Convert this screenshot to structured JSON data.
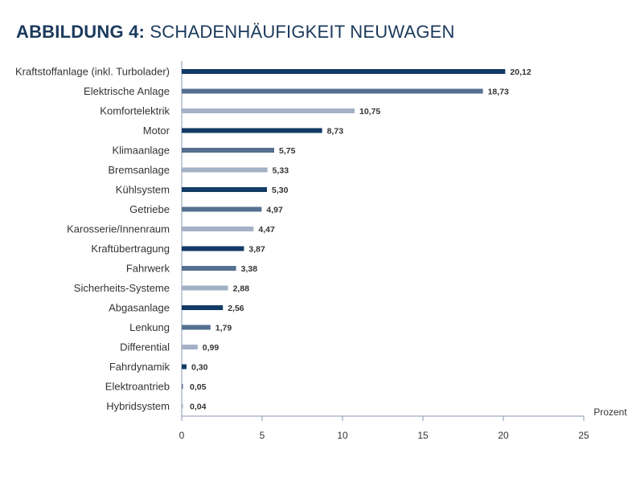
{
  "header": {
    "title_bold": "ABBILDUNG 4:",
    "title_rest": "SCHADENHÄUFIGKEIT NEUWAGEN"
  },
  "colors": {
    "dark": "#123a64",
    "medium": "#55708f",
    "light": "#a3b1c6",
    "axis": "#8a9ab0",
    "title": "#1b3a5c"
  },
  "chart_data": {
    "type": "bar",
    "orientation": "horizontal",
    "categories": [
      "Kraftstoffanlage (inkl. Turbolader)",
      "Elektrische Anlage",
      "Komfortelektrik",
      "Motor",
      "Klimaanlage",
      "Bremsanlage",
      "Kühlsystem",
      "Getriebe",
      "Karosserie/Innenraum",
      "Kraftübertragung",
      "Fahrwerk",
      "Sicherheits-Systeme",
      "Abgasanlage",
      "Lenkung",
      "Differential",
      "Fahrdynamik",
      "Elektroantrieb",
      "Hybridsystem"
    ],
    "values": [
      20.12,
      18.73,
      10.75,
      8.73,
      5.75,
      5.33,
      5.3,
      4.97,
      4.47,
      3.87,
      3.38,
      2.88,
      2.56,
      1.79,
      0.99,
      0.3,
      0.05,
      0.04
    ],
    "value_labels": [
      "20,12",
      "18,73",
      "10,75",
      "8,73",
      "5,75",
      "5,33",
      "5,30",
      "4,97",
      "4,47",
      "3,87",
      "3,38",
      "2,88",
      "2,56",
      "1,79",
      "0,99",
      "0,30",
      "0,05",
      "0,04"
    ],
    "bar_color_keys": [
      "dark",
      "medium",
      "light",
      "dark",
      "medium",
      "light",
      "dark",
      "medium",
      "light",
      "dark",
      "medium",
      "light",
      "dark",
      "medium",
      "light",
      "dark",
      "medium",
      "light"
    ],
    "xlim": [
      0,
      25
    ],
    "xticks": [
      "0",
      "5",
      "10",
      "15",
      "20",
      "25"
    ],
    "xtick_values": [
      0,
      5,
      10,
      15,
      20,
      25
    ],
    "xlabel": "Prozent",
    "grid": false,
    "legend": "none"
  }
}
